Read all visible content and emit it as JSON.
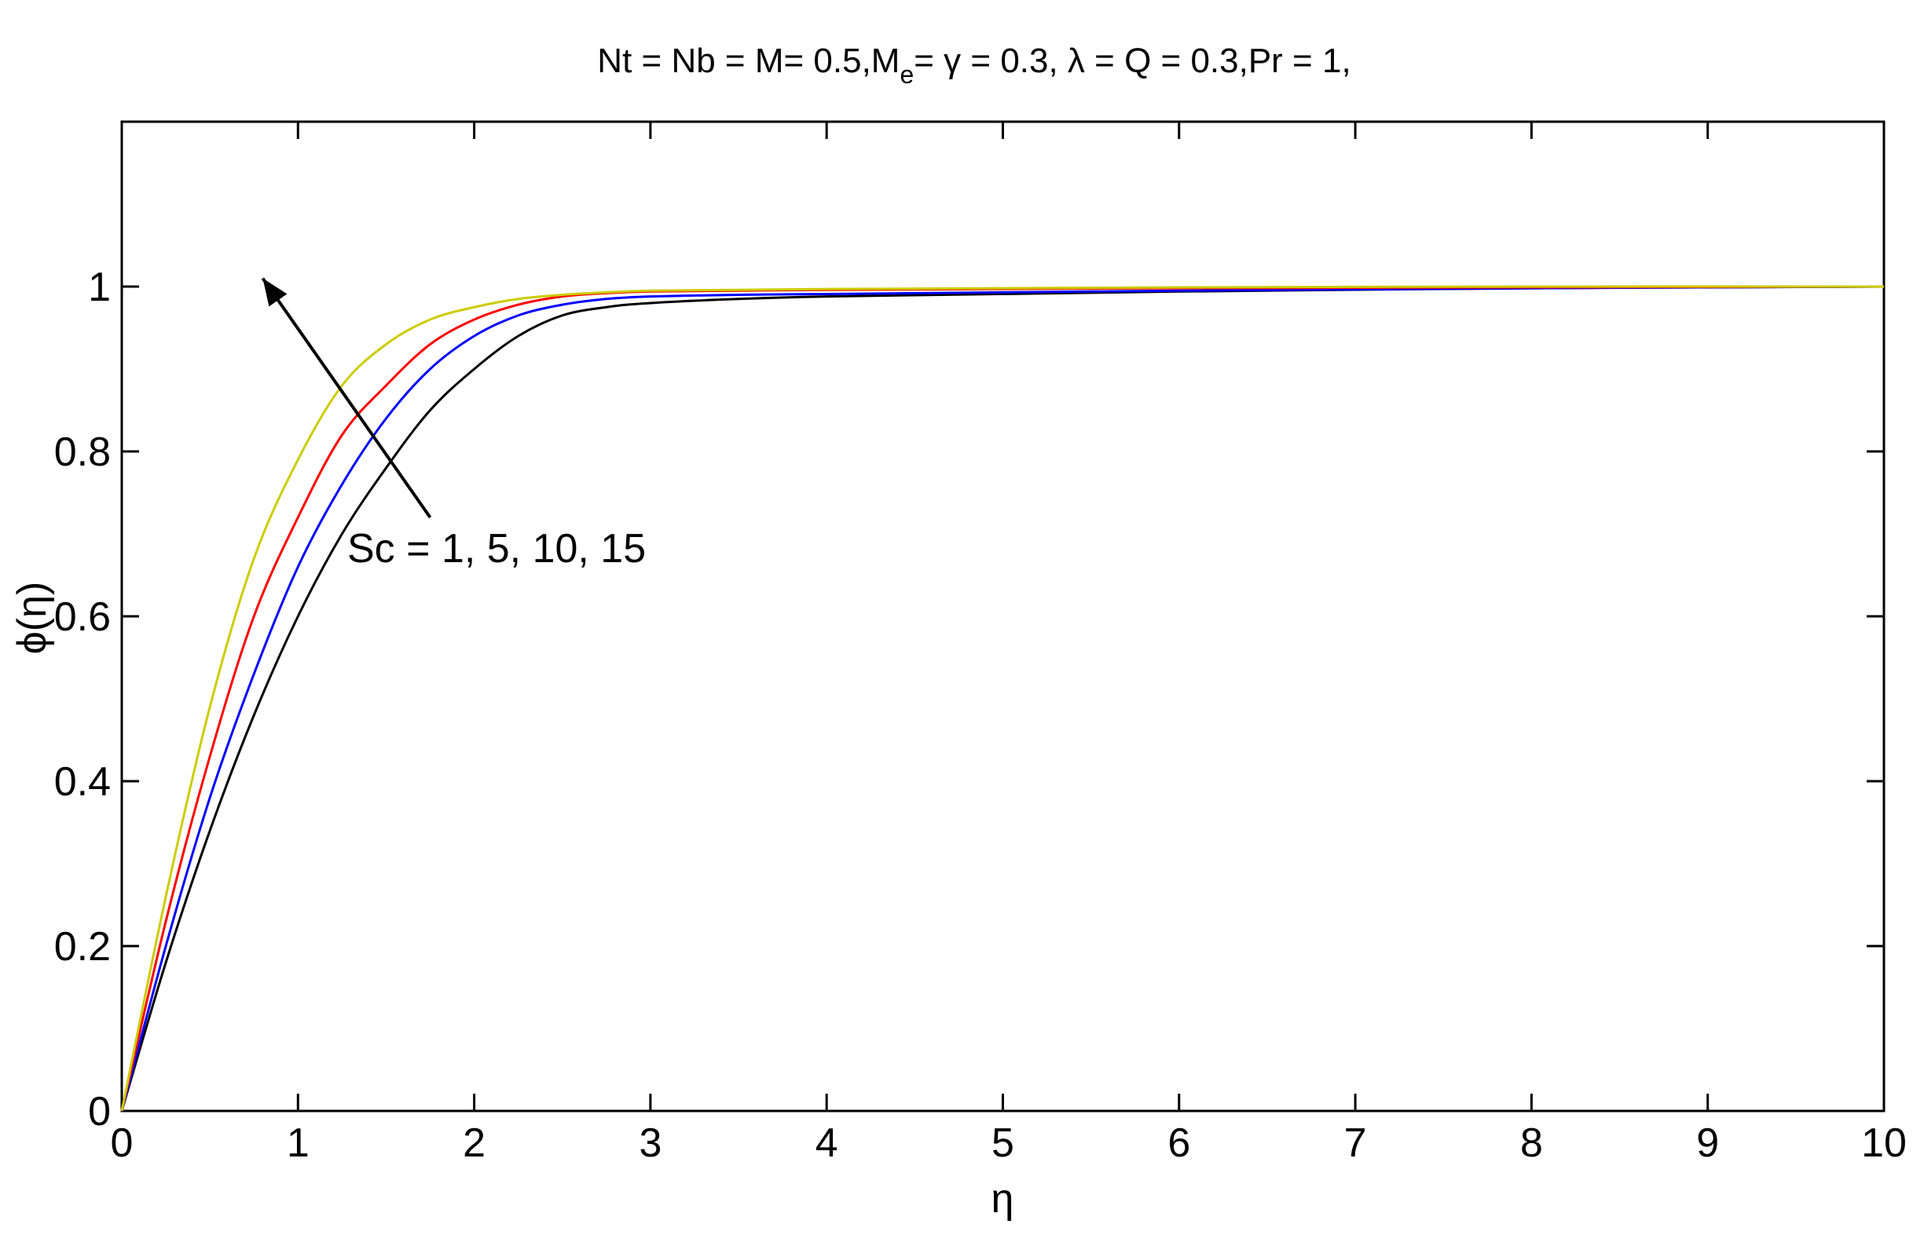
{
  "chart_data": {
    "type": "line",
    "title": "Nt = Nb = M= 0.5,Me= γ = 0.3, λ =  Q = 0.3,Pr = 1,",
    "title_parts": {
      "part1": "Nt = Nb = M= 0.5,M",
      "subscript": "e",
      "part2": "= γ = 0.3, λ =  Q = 0.3,Pr = 1,"
    },
    "xlabel": "η",
    "ylabel": "ϕ(η)",
    "xlim": [
      0,
      10
    ],
    "ylim": [
      0,
      1.2
    ],
    "xticks": [
      0,
      1,
      2,
      3,
      4,
      5,
      6,
      7,
      8,
      9,
      10
    ],
    "yticks": [
      0,
      0.2,
      0.4,
      0.6,
      0.8,
      1
    ],
    "xtick_labels": [
      "0",
      "1",
      "2",
      "3",
      "4",
      "5",
      "6",
      "7",
      "8",
      "9",
      "10"
    ],
    "ytick_labels": [
      "0",
      "0.2",
      "0.4",
      "0.6",
      "0.8",
      "1"
    ],
    "grid": false,
    "annotation": {
      "text": "Sc = 1, 5, 10, 15",
      "arrow_from": [
        1.75,
        0.72
      ],
      "arrow_to": [
        0.8,
        1.01
      ]
    },
    "series": [
      {
        "color": "#000000",
        "x": [
          0,
          0.25,
          0.5,
          0.75,
          1.0,
          1.25,
          1.5,
          1.75,
          2.0,
          2.25,
          2.5,
          2.75,
          3.0,
          3.5,
          4.0,
          5.0,
          6.0,
          8.0,
          10.0
        ],
        "y": [
          0,
          0.18,
          0.34,
          0.48,
          0.6,
          0.7,
          0.78,
          0.85,
          0.9,
          0.94,
          0.965,
          0.975,
          0.98,
          0.985,
          0.988,
          0.991,
          0.994,
          0.998,
          1.0
        ]
      },
      {
        "color": "#0000ff",
        "x": [
          0,
          0.25,
          0.5,
          0.75,
          1.0,
          1.25,
          1.5,
          1.75,
          2.0,
          2.25,
          2.5,
          2.75,
          3.0,
          3.5,
          4.0,
          5.0,
          6.0,
          8.0,
          10.0
        ],
        "y": [
          0,
          0.2,
          0.38,
          0.53,
          0.66,
          0.76,
          0.84,
          0.9,
          0.94,
          0.965,
          0.978,
          0.985,
          0.988,
          0.99,
          0.991,
          0.993,
          0.995,
          0.998,
          1.0
        ]
      },
      {
        "color": "#ff0000",
        "x": [
          0,
          0.25,
          0.5,
          0.75,
          1.0,
          1.25,
          1.5,
          1.75,
          2.0,
          2.25,
          2.5,
          2.75,
          3.0,
          3.5,
          4.0,
          5.0,
          6.0,
          8.0,
          10.0
        ],
        "y": [
          0,
          0.23,
          0.43,
          0.6,
          0.72,
          0.82,
          0.88,
          0.93,
          0.96,
          0.978,
          0.988,
          0.992,
          0.994,
          0.995,
          0.996,
          0.997,
          0.998,
          0.999,
          1.0
        ]
      },
      {
        "color": "#cccc00",
        "x": [
          0,
          0.25,
          0.5,
          0.75,
          1.0,
          1.25,
          1.5,
          1.75,
          2.0,
          2.25,
          2.5,
          2.75,
          3.0,
          3.5,
          4.0,
          5.0,
          6.0,
          8.0,
          10.0
        ],
        "y": [
          0,
          0.26,
          0.49,
          0.67,
          0.79,
          0.88,
          0.93,
          0.96,
          0.975,
          0.985,
          0.99,
          0.993,
          0.995,
          0.996,
          0.997,
          0.998,
          0.999,
          1.0,
          1.0
        ]
      }
    ]
  }
}
